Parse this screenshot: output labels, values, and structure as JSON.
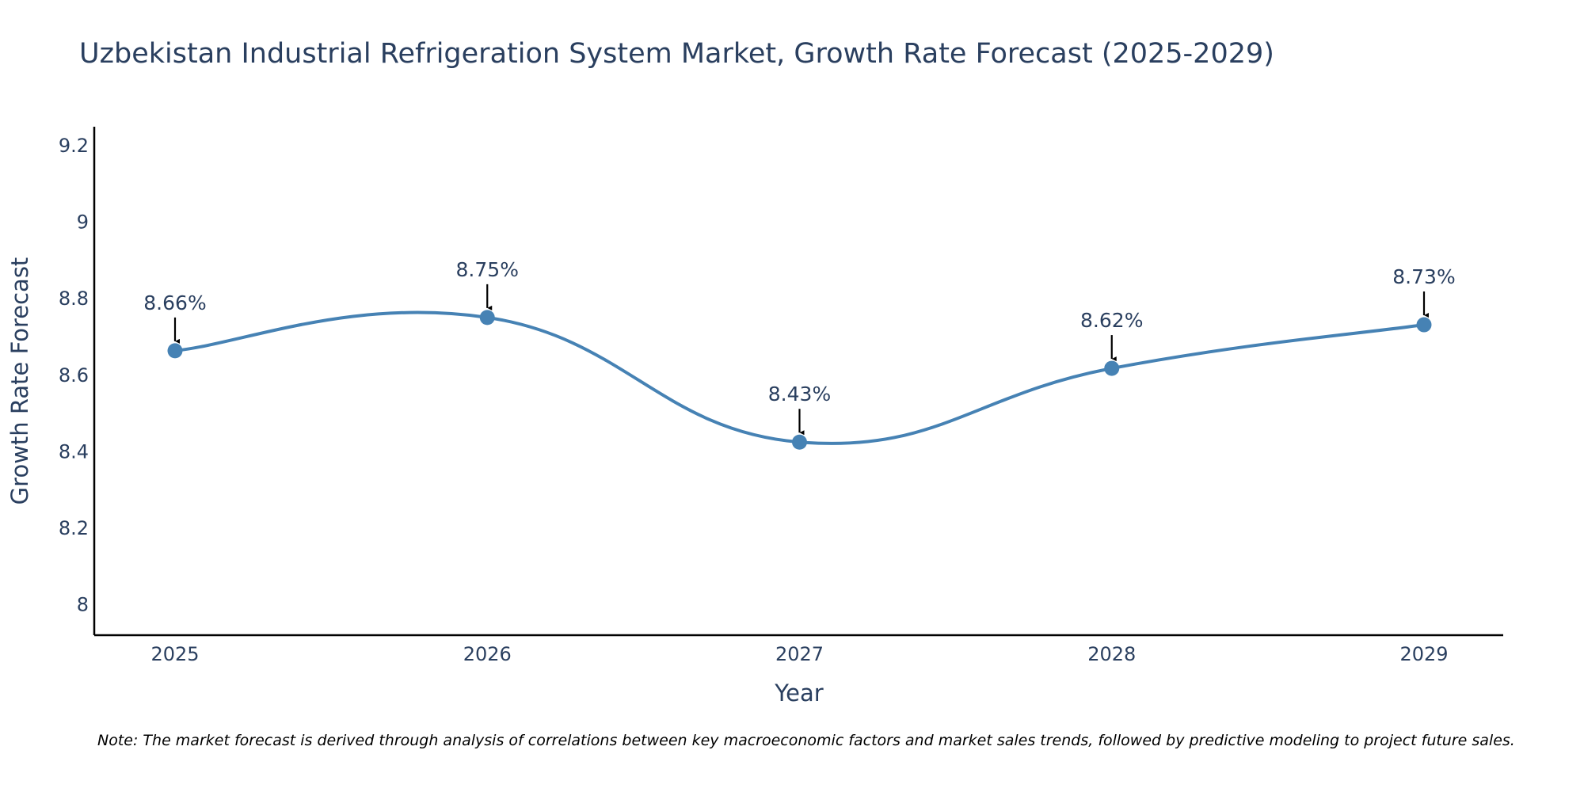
{
  "chart_data": {
    "type": "line",
    "title": "Uzbekistan Industrial Refrigeration System Market, Growth Rate Forecast (2025-2029)",
    "xlabel": "Year",
    "ylabel": "Growth Rate Forecast",
    "categories": [
      "2025",
      "2026",
      "2027",
      "2028",
      "2029"
    ],
    "series": [
      {
        "name": "Growth Rate Forecast",
        "values": [
          8.664,
          8.751,
          8.425,
          8.618,
          8.732
        ],
        "data_labels": [
          "8.66%",
          "8.75%",
          "8.43%",
          "8.62%",
          "8.73%"
        ]
      }
    ],
    "ylim": [
      7.92,
      9.25
    ],
    "yticks": [
      8,
      8.2,
      8.4,
      8.6,
      8.8,
      9,
      9.2
    ],
    "ytick_labels": [
      "8",
      "8.2",
      "8.4",
      "8.6",
      "8.8",
      "9",
      "9.2"
    ],
    "grid": false,
    "line_color": "#4682b4",
    "annotation_arrow_color": "#000000",
    "note": "Note: The market forecast is derived through analysis of correlations between key macroeconomic factors and market sales trends, followed by predictive modeling to project future sales."
  }
}
